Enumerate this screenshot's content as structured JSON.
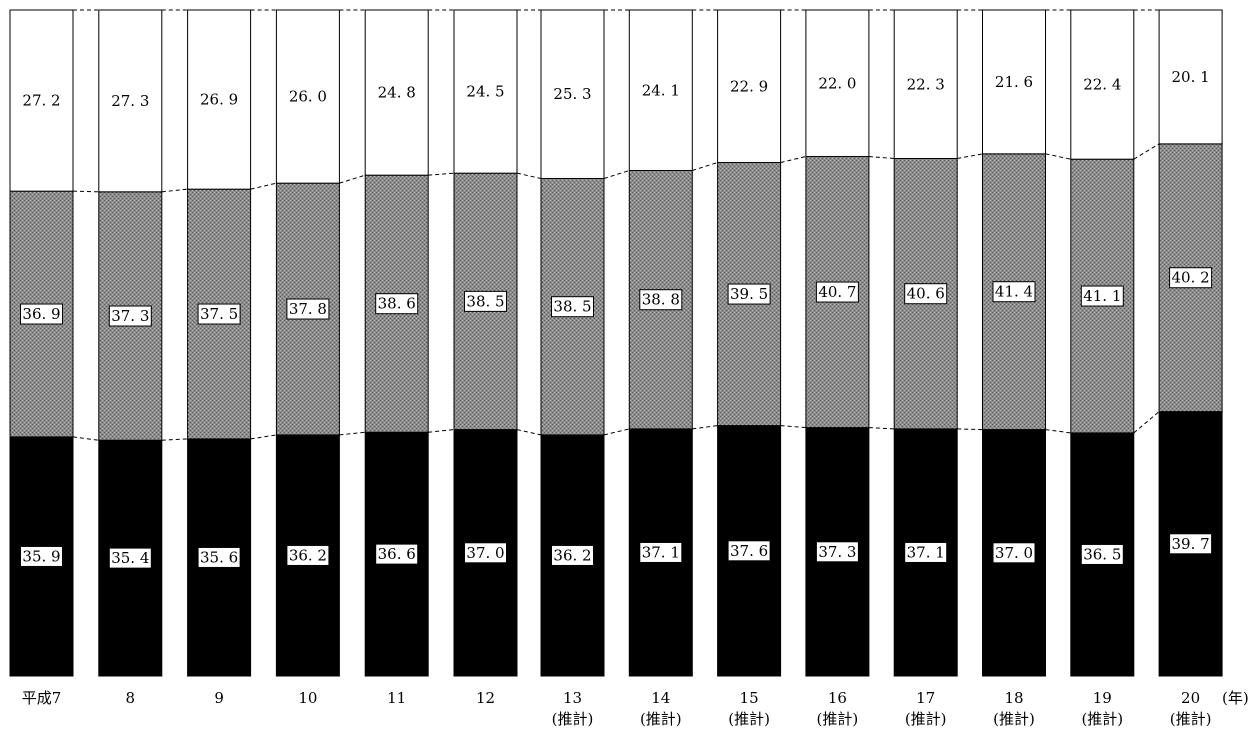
{
  "chart_data": {
    "type": "bar",
    "stacked": true,
    "percent": true,
    "categories": [
      "平成7",
      "8",
      "9",
      "10",
      "11",
      "12",
      "13",
      "14",
      "15",
      "16",
      "17",
      "18",
      "19",
      "20"
    ],
    "category_notes": [
      "",
      "",
      "",
      "",
      "",
      "",
      "(推計)",
      "(推計)",
      "(推計)",
      "(推計)",
      "(推計)",
      "(推計)",
      "(推計)",
      "(推計)"
    ],
    "x_unit": "(年)",
    "series": [
      {
        "name": "",
        "fill": "#000000",
        "values": [
          35.9,
          35.4,
          35.6,
          36.2,
          36.6,
          37.0,
          36.2,
          37.1,
          37.6,
          37.3,
          37.1,
          37.0,
          36.5,
          39.7
        ]
      },
      {
        "name": "",
        "fill": "#8c8c8c",
        "values": [
          36.9,
          37.3,
          37.5,
          37.8,
          38.6,
          38.5,
          38.5,
          38.8,
          39.5,
          40.7,
          40.6,
          41.4,
          41.1,
          40.2
        ]
      },
      {
        "name": "",
        "fill": "#ffffff",
        "values": [
          27.2,
          27.3,
          26.9,
          26.0,
          24.8,
          24.5,
          25.3,
          24.1,
          22.9,
          22.0,
          22.3,
          21.6,
          22.4,
          20.1
        ]
      }
    ],
    "ylim": [
      0,
      100
    ],
    "grid": false,
    "legend": "none"
  }
}
